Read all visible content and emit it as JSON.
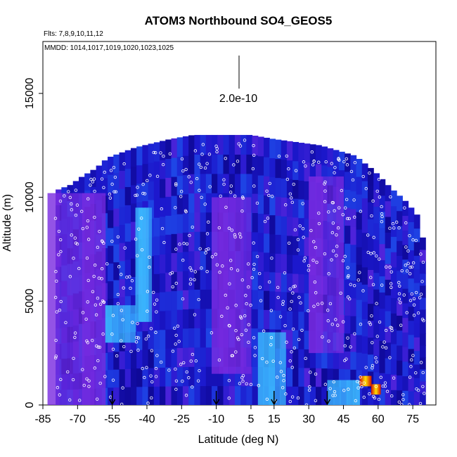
{
  "chart_data": {
    "type": "heatmap",
    "title": "ATOM3 Northbound SO4_GEOS5",
    "subtitle_flights": "Flts: 7,8,9,10,11,12",
    "subtitle_dates": "MMDD: 1014,1017,1019,1020,1023,1025",
    "xlabel": "Latitude (deg N)",
    "ylabel": "Altitude (m)",
    "xlim": [
      -85,
      85
    ],
    "ylim": [
      0,
      17500
    ],
    "x_ticks": [
      -85,
      -70,
      -55,
      -40,
      -25,
      -10,
      5,
      15,
      30,
      45,
      60,
      75
    ],
    "x_tick_labels": [
      "-85",
      "-70",
      "-55",
      "-40",
      "-25",
      "-10",
      "5",
      "15",
      "30",
      "45",
      "60",
      "75"
    ],
    "y_ticks": [
      0,
      5000,
      10000,
      15000
    ],
    "y_tick_labels": [
      "0",
      "5000",
      "10000",
      "15000"
    ],
    "scale_bar_label": "2.0e-10",
    "colors": {
      "low": "#1a10b0",
      "mid": "#7a2be0",
      "cyan": "#40c8ff",
      "high_red": "#d01000",
      "high_yellow": "#ffe000",
      "points": "#ffffff"
    },
    "ceiling_profile": [
      {
        "lat": -80,
        "alt": 10300
      },
      {
        "lat": -73,
        "alt": 10600
      },
      {
        "lat": -68,
        "alt": 11000
      },
      {
        "lat": -62,
        "alt": 11400
      },
      {
        "lat": -57,
        "alt": 11900
      },
      {
        "lat": -45,
        "alt": 12400
      },
      {
        "lat": -30,
        "alt": 12800
      },
      {
        "lat": -20,
        "alt": 13000
      },
      {
        "lat": 5,
        "alt": 13000
      },
      {
        "lat": 15,
        "alt": 12800
      },
      {
        "lat": 35,
        "alt": 12500
      },
      {
        "lat": 50,
        "alt": 12000
      },
      {
        "lat": 58,
        "alt": 11300
      },
      {
        "lat": 65,
        "alt": 10500
      },
      {
        "lat": 72,
        "alt": 9800
      },
      {
        "lat": 78,
        "alt": 9000
      },
      {
        "lat": 80,
        "alt": 7500
      }
    ],
    "features": [
      {
        "lat0": -83,
        "lat1": -58,
        "alt0": 0,
        "alt1": 10200,
        "level": "mid"
      },
      {
        "lat0": -12,
        "lat1": 5,
        "alt0": 1500,
        "alt1": 10000,
        "level": "mid"
      },
      {
        "lat0": 30,
        "lat1": 45,
        "alt0": 2500,
        "alt1": 11000,
        "level": "mid"
      },
      {
        "lat0": -58,
        "lat1": -45,
        "alt0": 3000,
        "alt1": 4800,
        "level": "cyan"
      },
      {
        "lat0": -45,
        "lat1": -38,
        "alt0": 4000,
        "alt1": 9500,
        "level": "cyan"
      },
      {
        "lat0": 8,
        "lat1": 20,
        "alt0": 0,
        "alt1": 3500,
        "level": "cyan"
      },
      {
        "lat0": 38,
        "lat1": 52,
        "alt0": 0,
        "alt1": 1200,
        "level": "cyan"
      },
      {
        "lat0": 52,
        "lat1": 57,
        "alt0": 900,
        "alt1": 1400,
        "level": "high"
      },
      {
        "lat0": 57,
        "lat1": 61,
        "alt0": 500,
        "alt1": 1000,
        "level": "high"
      }
    ],
    "markers_lat": [
      -55,
      -10,
      15,
      38
    ]
  }
}
